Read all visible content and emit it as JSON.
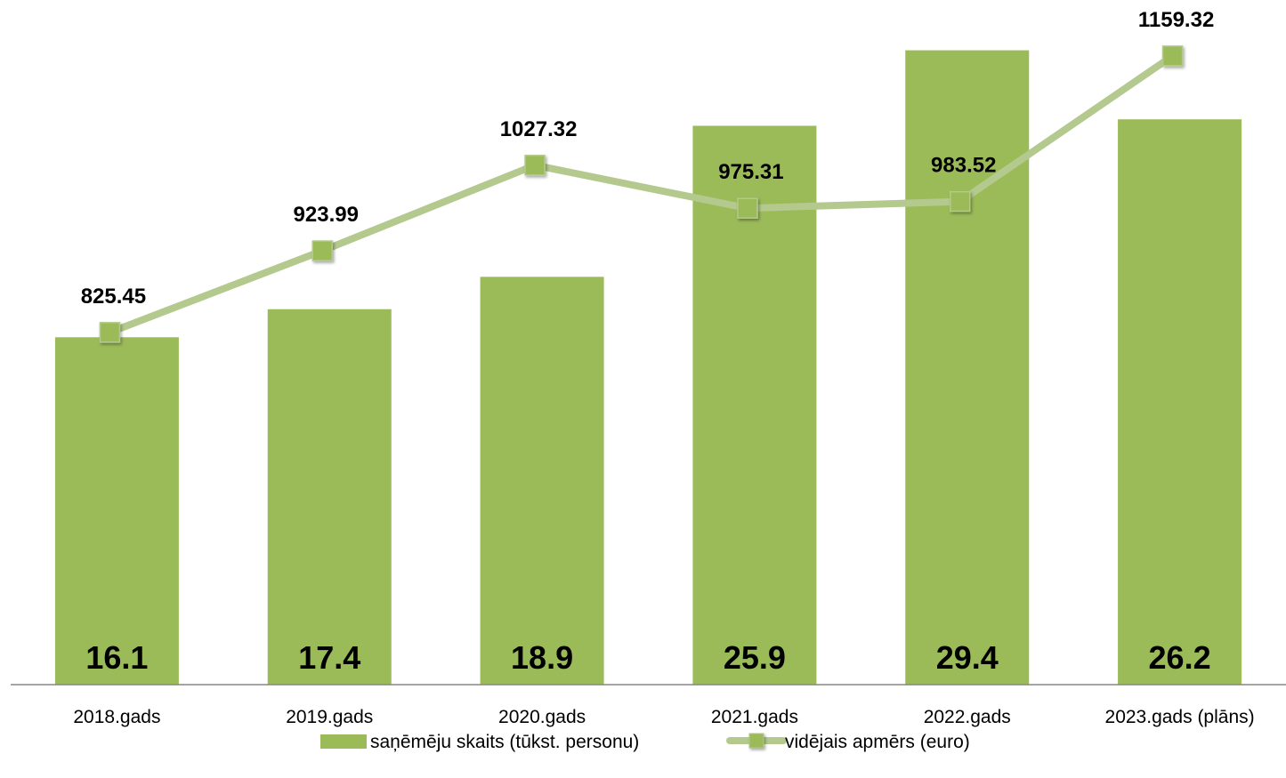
{
  "chart_data": {
    "type": "bar",
    "categories": [
      "2018.gads",
      "2019.gads",
      "2020.gads",
      "2021.gads",
      "2022.gads",
      "2023.gads (plāns)"
    ],
    "series": [
      {
        "name": "saņēmēju skaits (tūkst. personu)",
        "type": "bar",
        "axis": "primary",
        "values": [
          16.1,
          17.4,
          18.9,
          25.9,
          29.4,
          26.2
        ],
        "labels": [
          "16.1",
          "17.4",
          "18.9",
          "25.9",
          "29.4",
          "26.2"
        ],
        "color": "#9bbb59"
      },
      {
        "name": "vidējais apmērs (euro)",
        "type": "line",
        "axis": "secondary",
        "marker": "square",
        "values": [
          825.45,
          923.99,
          1027.32,
          975.31,
          983.52,
          1159.32
        ],
        "labels": [
          "825.45",
          "923.99",
          "1027.32",
          "975.31",
          "983.52",
          "1159.32"
        ],
        "color": "#b3c98d",
        "marker_color": "#9bbb59"
      }
    ],
    "ylim": [
      0,
      30.7
    ],
    "y2lim": [
      400,
      1200
    ],
    "grid": false,
    "legend": "bottom",
    "title": "",
    "xlabel": "",
    "ylabel": ""
  }
}
